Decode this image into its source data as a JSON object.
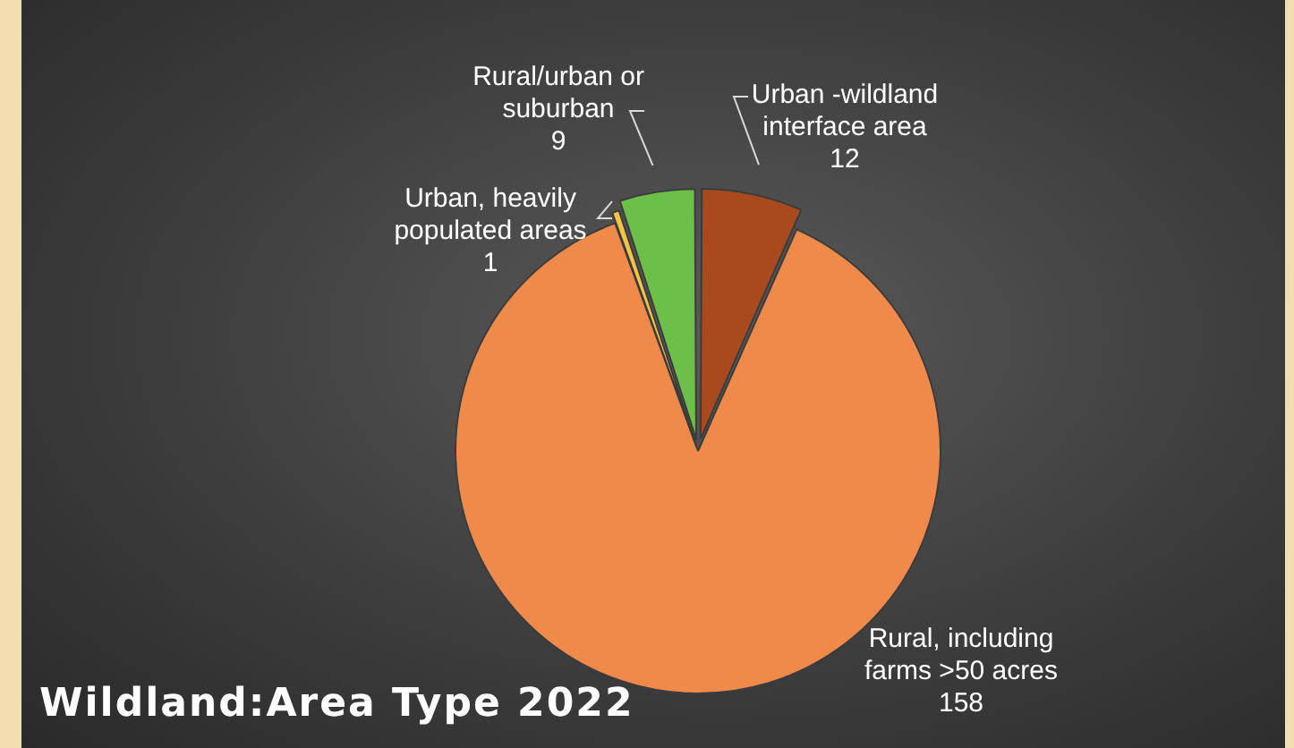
{
  "chart_data": {
    "type": "pie",
    "title": "Wildland:Area Type 2022",
    "categories": [
      "Urban -wildland interface area",
      "Rural, including farms >50 acres",
      "Urban, heavily populated areas",
      "Rural/urban or suburban"
    ],
    "values": [
      12,
      158,
      1,
      9
    ],
    "colors": [
      "#a84a1e",
      "#f08a4b",
      "#f2c545",
      "#6cbf47"
    ],
    "data_labels": true,
    "legend": false
  }
}
